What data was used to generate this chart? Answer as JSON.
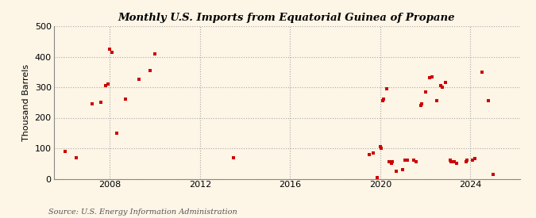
{
  "title": "Monthly U.S. Imports from Equatorial Guinea of Propane",
  "ylabel": "Thousand Barrels",
  "source": "Source: U.S. Energy Information Administration",
  "background_color": "#fdf5e6",
  "marker_color": "#cc0000",
  "xlim": [
    2005.5,
    2026.2
  ],
  "ylim": [
    0,
    500
  ],
  "yticks": [
    0,
    100,
    200,
    300,
    400,
    500
  ],
  "xticks": [
    2008,
    2012,
    2016,
    2020,
    2024
  ],
  "data_points": [
    [
      2006.0,
      90
    ],
    [
      2006.5,
      70
    ],
    [
      2007.2,
      245
    ],
    [
      2007.6,
      250
    ],
    [
      2007.8,
      305
    ],
    [
      2007.9,
      310
    ],
    [
      2008.0,
      425
    ],
    [
      2008.1,
      415
    ],
    [
      2008.3,
      150
    ],
    [
      2008.7,
      260
    ],
    [
      2009.3,
      325
    ],
    [
      2009.8,
      355
    ],
    [
      2010.0,
      410
    ],
    [
      2013.5,
      68
    ],
    [
      2019.5,
      80
    ],
    [
      2019.7,
      85
    ],
    [
      2019.85,
      5
    ],
    [
      2020.0,
      105
    ],
    [
      2020.05,
      100
    ],
    [
      2020.1,
      255
    ],
    [
      2020.15,
      260
    ],
    [
      2020.3,
      295
    ],
    [
      2020.4,
      55
    ],
    [
      2020.5,
      50
    ],
    [
      2020.55,
      55
    ],
    [
      2020.7,
      25
    ],
    [
      2021.0,
      30
    ],
    [
      2021.1,
      60
    ],
    [
      2021.2,
      60
    ],
    [
      2021.5,
      60
    ],
    [
      2021.6,
      55
    ],
    [
      2021.8,
      240
    ],
    [
      2021.85,
      245
    ],
    [
      2022.0,
      285
    ],
    [
      2022.2,
      330
    ],
    [
      2022.3,
      335
    ],
    [
      2022.5,
      255
    ],
    [
      2022.7,
      305
    ],
    [
      2022.75,
      300
    ],
    [
      2022.9,
      315
    ],
    [
      2023.1,
      60
    ],
    [
      2023.15,
      55
    ],
    [
      2023.3,
      55
    ],
    [
      2023.4,
      50
    ],
    [
      2023.8,
      55
    ],
    [
      2023.85,
      60
    ],
    [
      2024.1,
      60
    ],
    [
      2024.2,
      65
    ],
    [
      2024.5,
      350
    ],
    [
      2024.8,
      255
    ],
    [
      2025.0,
      15
    ]
  ]
}
